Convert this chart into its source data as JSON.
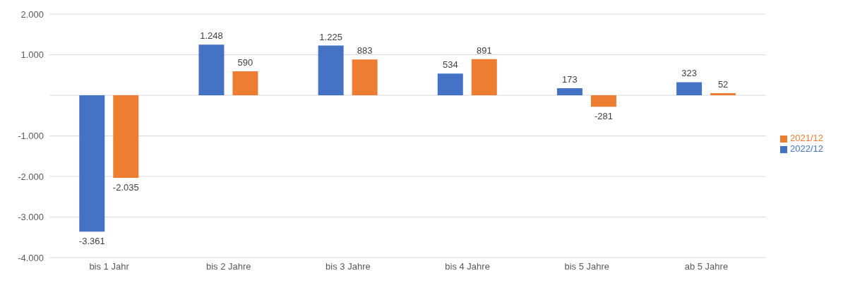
{
  "chart_data": {
    "type": "bar",
    "categories": [
      "bis 1 Jahr",
      "bis 2 Jahre",
      "bis 3 Jahre",
      "bis 4 Jahre",
      "bis 5 Jahre",
      "ab 5 Jahre"
    ],
    "series": [
      {
        "name": "2022/12",
        "color": "#4472c4",
        "values": [
          -3361,
          1248,
          1225,
          534,
          173,
          323
        ],
        "value_labels": [
          "-3.361",
          "1.248",
          "1.225",
          "534",
          "173",
          "323"
        ]
      },
      {
        "name": "2021/12",
        "color": "#ed7d31",
        "values": [
          -2035,
          590,
          883,
          891,
          -281,
          52
        ],
        "value_labels": [
          "-2.035",
          "590",
          "883",
          "891",
          "-281",
          "52"
        ]
      }
    ],
    "ylim": [
      -4000,
      2000
    ],
    "yticks": [
      {
        "value": -4000,
        "label": "-4.000"
      },
      {
        "value": -3000,
        "label": "-3.000"
      },
      {
        "value": -2000,
        "label": "-2.000"
      },
      {
        "value": -1000,
        "label": "-1.000"
      },
      {
        "value": 0,
        "label": null
      },
      {
        "value": 1000,
        "label": "1.000"
      },
      {
        "value": 2000,
        "label": "2.000"
      }
    ],
    "grid": "y",
    "legend": "right"
  }
}
